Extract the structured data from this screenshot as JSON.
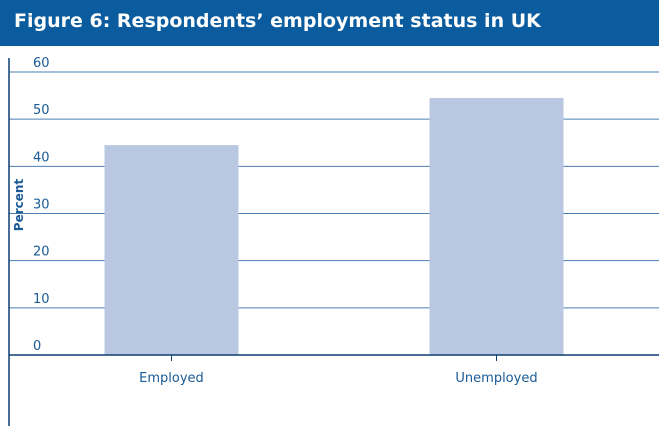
{
  "colors": {
    "title_bar": "#0b5c9e",
    "bar": "#bac7e1",
    "gridline": "#4a7fb5",
    "axis": "#0b3f73",
    "text": "#1a5a96"
  },
  "chart_data": {
    "type": "bar",
    "title": "Figure 6: Respondents’ employment status in UK",
    "xlabel": "",
    "ylabel": "Percent",
    "categories": [
      "Employed",
      "Unemployed"
    ],
    "values": [
      44.5,
      54.5
    ],
    "ylim": [
      0,
      60
    ],
    "yticks": [
      0,
      10,
      20,
      30,
      40,
      50,
      60
    ],
    "grid": true,
    "legend": "none"
  }
}
